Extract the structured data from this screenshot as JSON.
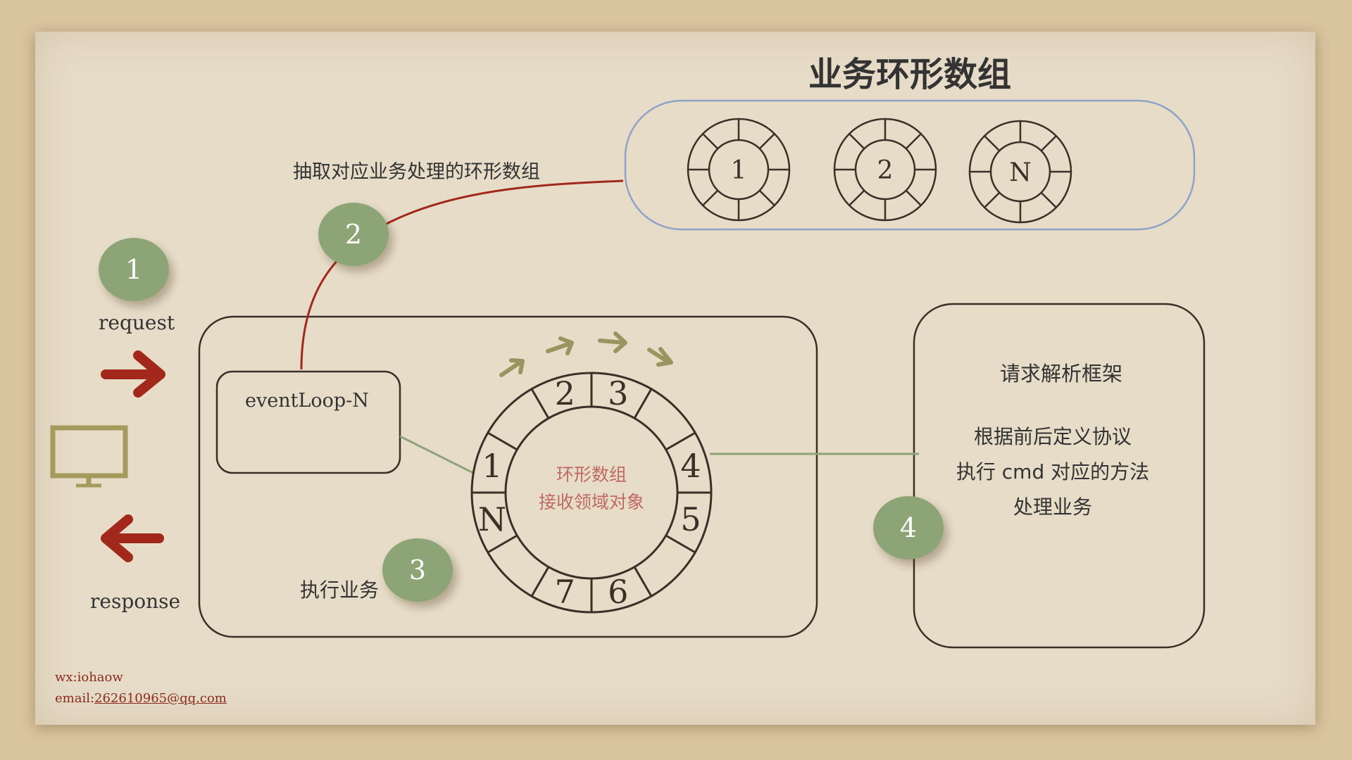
{
  "title": "业务环形数组",
  "extract_label": "抽取对应业务处理的环形数组",
  "steps": [
    "1",
    "2",
    "3",
    "4"
  ],
  "request_label": "request",
  "response_label": "response",
  "eventloop_label": "eventLoop-N",
  "exec_label": "执行业务",
  "ring": {
    "center_line1": "环形数组",
    "center_line2": "接收领域对象",
    "slots": [
      "1",
      "2",
      "3",
      "4",
      "5",
      "6",
      "7",
      "N"
    ]
  },
  "business_rings": [
    "1",
    "2",
    "N"
  ],
  "framework": {
    "title": "请求解析框架",
    "line1": "根据前后定义协议",
    "line2": "执行 cmd 对应的方法",
    "line3": "处理业务"
  },
  "footer": {
    "wx": "wx:iohaow",
    "email_prefix": "email:",
    "email": "262610965@qq.com"
  },
  "icons": [
    "request-arrow-icon",
    "response-arrow-icon",
    "monitor-icon",
    "flow-arrow-icon"
  ],
  "colors": {
    "paper": "#e6dcc8",
    "background": "#d9c4a0",
    "step_green": "#8da576",
    "arrow_red": "#a3281c",
    "connector_red": "#a3281c",
    "connector_green": "#8da576",
    "ring_border_blue": "#8fa3c8",
    "monitor_olive": "#a39a5c",
    "flow_arrow_olive": "#9a9460",
    "ring_center_text": "#c06a64"
  }
}
